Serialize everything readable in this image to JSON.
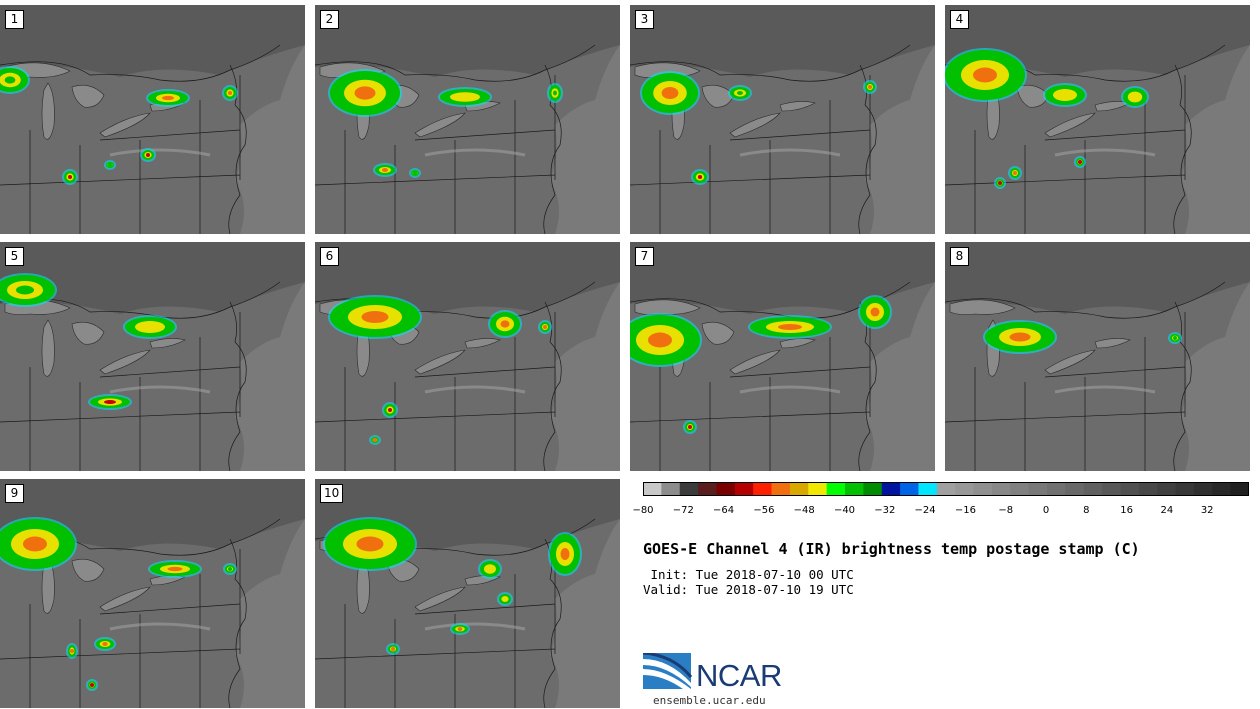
{
  "panels": [
    {
      "label": "1"
    },
    {
      "label": "2"
    },
    {
      "label": "3"
    },
    {
      "label": "4"
    },
    {
      "label": "5"
    },
    {
      "label": "6"
    },
    {
      "label": "7"
    },
    {
      "label": "8"
    },
    {
      "label": "9"
    },
    {
      "label": "10"
    }
  ],
  "colorbar": {
    "colors": [
      "#c8c8c8",
      "#8c8c8c",
      "#3c3c3c",
      "#5a1e1e",
      "#780000",
      "#b40000",
      "#ff2000",
      "#f07010",
      "#d8a800",
      "#f0e800",
      "#00ff00",
      "#00c000",
      "#008c00",
      "#0014a0",
      "#0064e6",
      "#00e6ff",
      "#a0a0a0",
      "#989898",
      "#909090",
      "#888888",
      "#808080",
      "#787878",
      "#707070",
      "#686868",
      "#606060",
      "#585858",
      "#505050",
      "#484848",
      "#404040",
      "#383838",
      "#303030",
      "#282828",
      "#202020"
    ],
    "tick_labels": [
      "−80",
      "−72",
      "−64",
      "−56",
      "−48",
      "−40",
      "−32",
      "−24",
      "−16",
      "−8",
      "0",
      "8",
      "16",
      "24",
      "32"
    ]
  },
  "title": "GOES-E Channel 4 (IR) brightness temp postage stamp (C)",
  "init": " Init: Tue 2018-07-10 00 UTC",
  "valid": "Valid: Tue 2018-07-10 19 UTC",
  "logo": {
    "name": "NCAR",
    "url": "ensemble.ucar.edu"
  }
}
